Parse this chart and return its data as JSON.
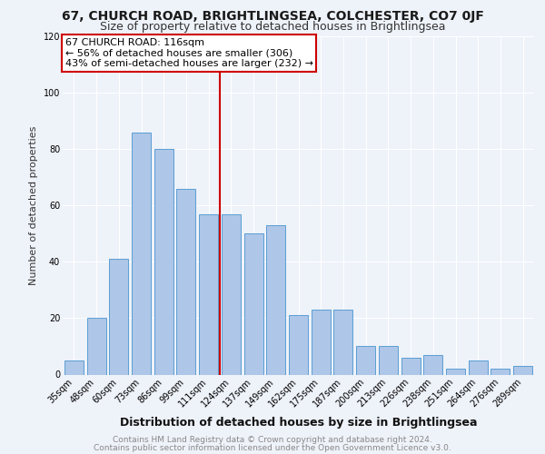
{
  "title1": "67, CHURCH ROAD, BRIGHTLINGSEA, COLCHESTER, CO7 0JF",
  "title2": "Size of property relative to detached houses in Brightlingsea",
  "xlabel": "Distribution of detached houses by size in Brightlingsea",
  "ylabel": "Number of detached properties",
  "categories": [
    "35sqm",
    "48sqm",
    "60sqm",
    "73sqm",
    "86sqm",
    "99sqm",
    "111sqm",
    "124sqm",
    "137sqm",
    "149sqm",
    "162sqm",
    "175sqm",
    "187sqm",
    "200sqm",
    "213sqm",
    "226sqm",
    "238sqm",
    "251sqm",
    "264sqm",
    "276sqm",
    "289sqm"
  ],
  "values": [
    5,
    20,
    41,
    86,
    80,
    66,
    57,
    57,
    50,
    53,
    21,
    23,
    23,
    10,
    10,
    6,
    7,
    2,
    5,
    2,
    3
  ],
  "bar_color": "#aec6e8",
  "bar_edge_color": "#5a9fd4",
  "vline_x_index": 6.5,
  "vline_color": "#cc0000",
  "annotation_title": "67 CHURCH ROAD: 116sqm",
  "annotation_line1": "← 56% of detached houses are smaller (306)",
  "annotation_line2": "43% of semi-detached houses are larger (232) →",
  "annotation_box_color": "#cc0000",
  "annotation_text_color": "#000000",
  "ylim": [
    0,
    120
  ],
  "yticks": [
    0,
    20,
    40,
    60,
    80,
    100,
    120
  ],
  "footer1": "Contains HM Land Registry data © Crown copyright and database right 2024.",
  "footer2": "Contains public sector information licensed under the Open Government Licence v3.0.",
  "background_color": "#eef2f9",
  "plot_bg_color": "#eef2f9",
  "grid_color": "#ffffff",
  "title1_fontsize": 10,
  "title2_fontsize": 9,
  "xlabel_fontsize": 9,
  "ylabel_fontsize": 8,
  "footer_fontsize": 6.5,
  "annotation_fontsize": 8,
  "tick_fontsize": 7
}
